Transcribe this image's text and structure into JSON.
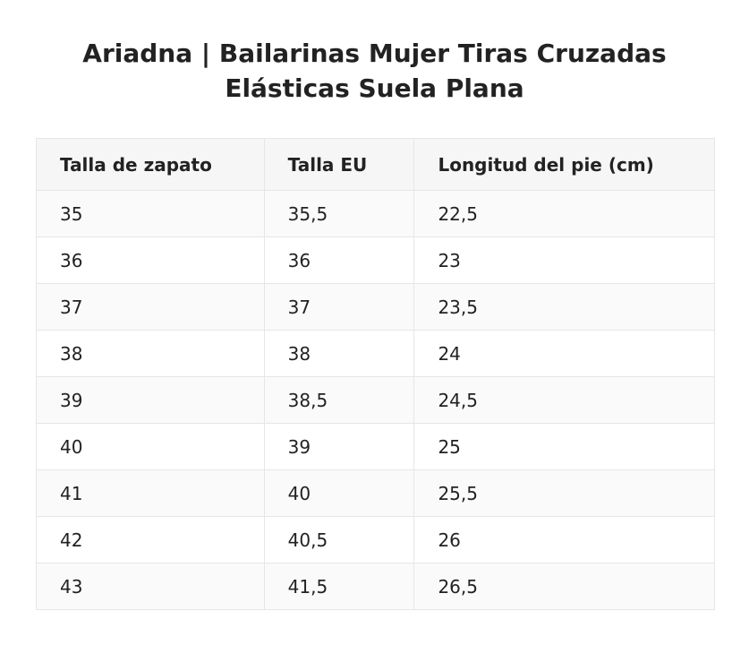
{
  "title": {
    "line1": "Ariadna | Bailarinas Mujer Tiras Cruzadas",
    "line2": "Elásticas Suela Plana"
  },
  "table": {
    "headers": [
      "Talla de zapato",
      "Talla EU",
      "Longitud del pie (cm)"
    ],
    "rows": [
      [
        "35",
        "35,5",
        "22,5"
      ],
      [
        "36",
        "36",
        "23"
      ],
      [
        "37",
        "37",
        "23,5"
      ],
      [
        "38",
        "38",
        "24"
      ],
      [
        "39",
        "38,5",
        "24,5"
      ],
      [
        "40",
        "39",
        "25"
      ],
      [
        "41",
        "40",
        "25,5"
      ],
      [
        "42",
        "40,5",
        "26"
      ],
      [
        "43",
        "41,5",
        "26,5"
      ]
    ]
  }
}
